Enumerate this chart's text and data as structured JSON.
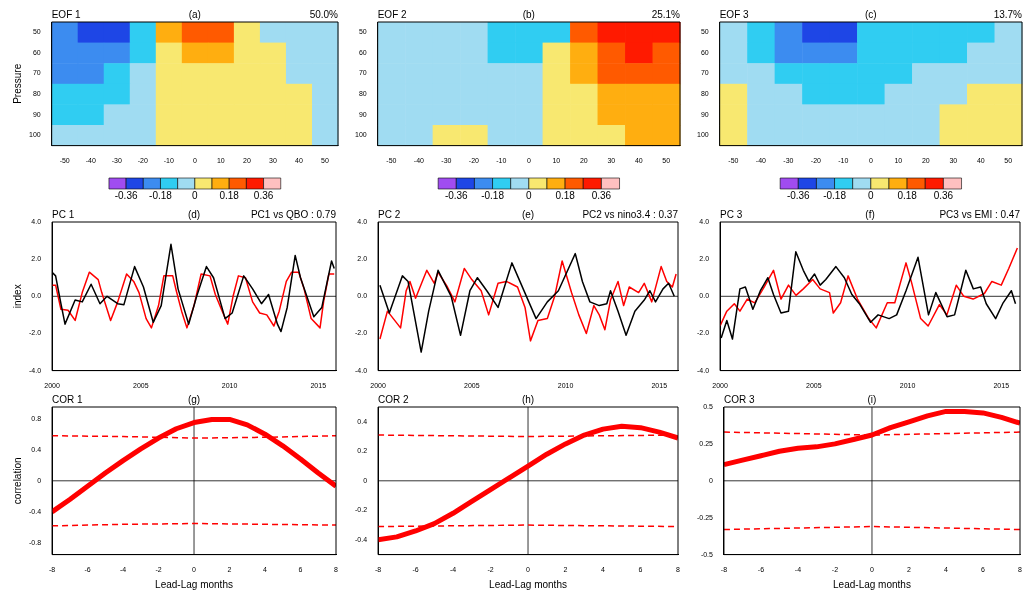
{
  "chart_data": [
    {
      "type": "heatmap",
      "title": "(a)",
      "annotations": [
        "EOF 1",
        "50.0%"
      ],
      "ylabel": "Pressure",
      "categories": [
        "-50",
        "-40",
        "-30",
        "-20",
        "-10",
        "0",
        "10",
        "20",
        "30",
        "40",
        "50"
      ],
      "y_categories": [
        "50",
        "60",
        "70",
        "80",
        "90",
        "100"
      ],
      "cells": [
        [
          -0.23,
          -0.32,
          -0.32,
          -0.14,
          0.14,
          0.23,
          0.23,
          0.05,
          -0.05,
          -0.05,
          -0.05
        ],
        [
          -0.23,
          -0.23,
          -0.23,
          -0.14,
          0.05,
          0.14,
          0.14,
          0.05,
          0.05,
          -0.05,
          -0.05
        ],
        [
          -0.23,
          -0.23,
          -0.14,
          -0.05,
          0.05,
          0.05,
          0.05,
          0.05,
          0.05,
          -0.05,
          -0.05
        ],
        [
          -0.14,
          -0.14,
          -0.14,
          -0.05,
          0.05,
          0.05,
          0.05,
          0.05,
          0.05,
          0.05,
          -0.05
        ],
        [
          -0.14,
          -0.14,
          -0.05,
          -0.05,
          0.05,
          0.05,
          0.05,
          0.05,
          0.05,
          0.05,
          -0.05
        ],
        [
          -0.05,
          -0.05,
          -0.05,
          -0.05,
          0.05,
          0.05,
          0.05,
          0.05,
          0.05,
          0.05,
          -0.05
        ]
      ],
      "clim": [
        -0.45,
        0.45
      ],
      "cticks": [
        -0.36,
        {
          "value": -0.27,
          "label": null
        },
        -0.18,
        {
          "value": -0.09,
          "label": null
        },
        0,
        {
          "value": 0.09,
          "label": null
        },
        0.18,
        {
          "value": 0.27,
          "label": null
        },
        0.36
      ],
      "colors": [
        "#a04cf0",
        "#1e46e6",
        "#3c8cf0",
        "#30cdf2",
        "#a0dcf2",
        "#f8e870",
        "#ffae10",
        "#ff5a00",
        "#ff1a00",
        "#ffc0c0"
      ]
    },
    {
      "type": "heatmap",
      "title": "(b)",
      "annotations": [
        "EOF 2",
        "25.1%"
      ],
      "categories": [
        "-50",
        "-40",
        "-30",
        "-20",
        "-10",
        "0",
        "10",
        "20",
        "30",
        "40",
        "50"
      ],
      "y_categories": [
        "50",
        "60",
        "70",
        "80",
        "90",
        "100"
      ],
      "cells": [
        [
          -0.05,
          -0.05,
          -0.05,
          -0.05,
          -0.14,
          -0.14,
          -0.14,
          0.23,
          0.32,
          0.32,
          0.32
        ],
        [
          -0.05,
          -0.05,
          -0.05,
          -0.05,
          -0.14,
          -0.14,
          0.05,
          0.14,
          0.23,
          0.32,
          0.23
        ],
        [
          -0.05,
          -0.05,
          -0.05,
          -0.05,
          -0.05,
          -0.05,
          0.05,
          0.14,
          0.23,
          0.23,
          0.23
        ],
        [
          -0.05,
          -0.05,
          -0.05,
          -0.05,
          -0.05,
          -0.05,
          0.05,
          0.05,
          0.14,
          0.14,
          0.14
        ],
        [
          -0.05,
          -0.05,
          -0.05,
          -0.05,
          -0.05,
          -0.05,
          0.05,
          0.05,
          0.14,
          0.14,
          0.14
        ],
        [
          -0.05,
          -0.05,
          0.05,
          0.05,
          -0.05,
          -0.05,
          0.05,
          0.05,
          0.05,
          0.14,
          0.14
        ]
      ],
      "clim": [
        -0.45,
        0.45
      ],
      "cticks": [
        -0.36,
        {
          "value": -0.27,
          "label": null
        },
        -0.18,
        {
          "value": -0.09,
          "label": null
        },
        0,
        {
          "value": 0.09,
          "label": null
        },
        0.18,
        {
          "value": 0.27,
          "label": null
        },
        0.36
      ],
      "colors": [
        "#a04cf0",
        "#1e46e6",
        "#3c8cf0",
        "#30cdf2",
        "#a0dcf2",
        "#f8e870",
        "#ffae10",
        "#ff5a00",
        "#ff1a00",
        "#ffc0c0"
      ]
    },
    {
      "type": "heatmap",
      "title": "(c)",
      "annotations": [
        "EOF 3",
        "13.7%"
      ],
      "categories": [
        "-50",
        "-40",
        "-30",
        "-20",
        "-10",
        "0",
        "10",
        "20",
        "30",
        "40",
        "50"
      ],
      "y_categories": [
        "50",
        "60",
        "70",
        "80",
        "90",
        "100"
      ],
      "cells": [
        [
          -0.05,
          -0.14,
          -0.23,
          -0.32,
          -0.32,
          -0.14,
          -0.14,
          -0.14,
          -0.14,
          -0.14,
          -0.05
        ],
        [
          -0.05,
          -0.14,
          -0.23,
          -0.23,
          -0.23,
          -0.14,
          -0.14,
          -0.14,
          -0.14,
          -0.05,
          -0.05
        ],
        [
          -0.05,
          -0.05,
          -0.14,
          -0.14,
          -0.14,
          -0.14,
          -0.14,
          -0.05,
          -0.05,
          -0.05,
          -0.05
        ],
        [
          0.05,
          -0.05,
          -0.05,
          -0.14,
          -0.14,
          -0.14,
          -0.05,
          -0.05,
          -0.05,
          0.05,
          0.05
        ],
        [
          0.05,
          -0.05,
          -0.05,
          -0.05,
          -0.05,
          -0.05,
          -0.05,
          -0.05,
          0.05,
          0.05,
          0.05
        ],
        [
          0.05,
          -0.05,
          -0.05,
          -0.05,
          -0.05,
          -0.05,
          -0.05,
          -0.05,
          0.05,
          0.05,
          0.05
        ]
      ],
      "clim": [
        -0.45,
        0.45
      ],
      "cticks": [
        -0.36,
        {
          "value": -0.27,
          "label": null
        },
        -0.18,
        {
          "value": -0.09,
          "label": null
        },
        0,
        {
          "value": 0.09,
          "label": null
        },
        0.18,
        {
          "value": 0.27,
          "label": null
        },
        0.36
      ],
      "colors": [
        "#a04cf0",
        "#1e46e6",
        "#3c8cf0",
        "#30cdf2",
        "#a0dcf2",
        "#f8e870",
        "#ffae10",
        "#ff5a00",
        "#ff1a00",
        "#ffc0c0"
      ]
    },
    {
      "type": "line",
      "title": "(d)",
      "annotations": [
        "PC 1",
        "PC1 vs QBO : 0.79"
      ],
      "ylabel": "index",
      "xlim": [
        2000,
        2016
      ],
      "xticks": [
        2000,
        2005,
        2010,
        2015
      ],
      "ylim": [
        -4,
        4
      ],
      "yticks": [
        {
          "value": -4,
          "label": "-4.0"
        },
        {
          "value": -2,
          "label": "-2.0"
        },
        {
          "value": 0,
          "label": "0.0"
        },
        {
          "value": 2,
          "label": "2.0"
        },
        {
          "value": 4,
          "label": "4.0"
        }
      ],
      "ref_lines": [
        {
          "axis": "y",
          "value": 0,
          "color": "#000000"
        }
      ],
      "series": [
        {
          "color": "#000000",
          "x": [
            2000,
            2000.2,
            2000.5,
            2000.73,
            2001.3,
            2001.7,
            2002.2,
            2002.7,
            2003.1,
            2003.7,
            2004.05,
            2004.65,
            2005.15,
            2005.7,
            2006.15,
            2006.7,
            2007.1,
            2007.7,
            2008.15,
            2008.7,
            2009.1,
            2009.75,
            2010.15,
            2010.8,
            2011.3,
            2011.8,
            2012.2,
            2012.7,
            2012.9,
            2013.25,
            2013.7,
            2014,
            2014.75,
            2015.2,
            2015.75,
            2015.9
          ],
          "values": [
            1.3,
            1.1,
            -0.4,
            -1.5,
            -0.2,
            -0.3,
            0.65,
            -0.4,
            0,
            -0.4,
            -0.45,
            1.6,
            0.5,
            -1.4,
            -0.5,
            2.8,
            0.4,
            -1.5,
            0,
            1.6,
            1,
            -1.2,
            -0.9,
            1.1,
            0.4,
            -0.4,
            0.1,
            -1.5,
            -1.9,
            -0.6,
            2.2,
            1,
            -1.1,
            -0.6,
            1.9,
            1.5
          ]
        },
        {
          "color": "#ff0000",
          "x": [
            2000,
            2000.2,
            2000.5,
            2000.9,
            2001.3,
            2001.7,
            2002.1,
            2002.6,
            2002.8,
            2003.3,
            2003.7,
            2004.2,
            2004.6,
            2004.9,
            2005.3,
            2005.6,
            2006,
            2006.3,
            2006.8,
            2007,
            2007.3,
            2007.6,
            2008,
            2008.4,
            2008.9,
            2009.2,
            2009.5,
            2009.9,
            2010.2,
            2010.5,
            2010.9,
            2011.3,
            2011.7,
            2012.1,
            2012.5,
            2012.8,
            2013.2,
            2013.5,
            2013.9,
            2014.2,
            2014.6,
            2015.1,
            2015.3,
            2015.6,
            2015.9
          ],
          "values": [
            0.6,
            0.6,
            -0.7,
            -0.75,
            -1.3,
            0.2,
            1.3,
            0.9,
            0.2,
            -1.3,
            -0.3,
            1.2,
            0.8,
            0.2,
            -1.2,
            -1.7,
            -0.5,
            1.1,
            1.1,
            0.3,
            -0.8,
            -1.7,
            -0.5,
            1.2,
            1.1,
            0.1,
            -0.6,
            -1.5,
            0,
            1.1,
            1,
            -0.3,
            -0.9,
            -1,
            -1.6,
            -0.8,
            0.8,
            1.3,
            1.3,
            0.4,
            -1.2,
            -1.7,
            -0.3,
            1.2,
            1.2
          ]
        }
      ]
    },
    {
      "type": "line",
      "title": "(e)",
      "annotations": [
        "PC 2",
        "PC2 vs nino3.4 : 0.37"
      ],
      "xlim": [
        2000,
        2016
      ],
      "xticks": [
        2000,
        2005,
        2010,
        2015
      ],
      "ylim": [
        -4,
        4
      ],
      "yticks": [
        {
          "value": -4,
          "label": "-4.0"
        },
        {
          "value": -2,
          "label": "-2.0"
        },
        {
          "value": 0,
          "label": "0.0"
        },
        {
          "value": 2,
          "label": "2.0"
        },
        {
          "value": 4,
          "label": "4.0"
        }
      ],
      "ref_lines": [
        {
          "axis": "y",
          "value": 0,
          "color": "#000000"
        }
      ],
      "series": [
        {
          "color": "#000000",
          "x": [
            2000.1,
            2000.6,
            2001.3,
            2001.6,
            2002.3,
            2002.7,
            2003.2,
            2003.9,
            2004.4,
            2004.9,
            2005.3,
            2005.8,
            2006.4,
            2007.14,
            2008.43,
            2009.03,
            2009.62,
            2010.52,
            2010.9,
            2011.3,
            2011.8,
            2012.2,
            2012.4,
            2012.8,
            2013.23,
            2013.7,
            2014.2,
            2014.5,
            2014.8,
            2015.2,
            2015.5,
            2015.8
          ],
          "values": [
            0.6,
            -0.9,
            1.1,
            0.8,
            -3,
            -0.8,
            1.4,
            0,
            -2.1,
            0.3,
            1,
            0.3,
            -0.6,
            1.8,
            -1.2,
            -0.3,
            0.3,
            2.3,
            0.8,
            -0.3,
            -0.5,
            -0.4,
            0.3,
            -0.8,
            -2.1,
            -0.8,
            -0.2,
            0.3,
            -0.3,
            0.4,
            0.7,
            0
          ]
        },
        {
          "color": "#ff0000",
          "x": [
            2000.1,
            2000.5,
            2001.2,
            2001.5,
            2001.7,
            2002,
            2002.6,
            2003,
            2003.2,
            2003.7,
            2004.1,
            2004.6,
            2005,
            2005.5,
            2005.9,
            2006.4,
            2006.85,
            2007.44,
            2007.84,
            2008.13,
            2008.53,
            2009.03,
            2009.42,
            2009.82,
            2010.32,
            2010.71,
            2011.11,
            2011.51,
            2011.8,
            2012.1,
            2012.4,
            2012.8,
            2013.1,
            2013.4,
            2013.9,
            2014.2,
            2014.6,
            2015.1,
            2015.4,
            2015.7,
            2015.9
          ],
          "values": [
            -2.3,
            -0.8,
            -1.7,
            0.3,
            0.8,
            -0.1,
            1.4,
            0.7,
            1.3,
            0.5,
            -0.3,
            1.5,
            0.9,
            0.3,
            -1,
            0.7,
            0.8,
            0.5,
            -0.6,
            -2.4,
            -1.3,
            -1.2,
            0,
            1.9,
            0.2,
            -1,
            -2,
            -0.5,
            -1,
            -1.8,
            -0.2,
            0.8,
            -0.5,
            0.5,
            0.2,
            0.7,
            -0.3,
            1.6,
            0.8,
            0.5,
            1.2
          ]
        }
      ]
    },
    {
      "type": "line",
      "title": "(f)",
      "annotations": [
        "PC 3",
        "PC3 vs EMI : 0.47"
      ],
      "xlim": [
        2000,
        2016
      ],
      "xticks": [
        2000,
        2005,
        2010,
        2015
      ],
      "ylim": [
        -4,
        4
      ],
      "yticks": [
        {
          "value": -4,
          "label": "-4.0"
        },
        {
          "value": -2,
          "label": "-2.0"
        },
        {
          "value": 0,
          "label": "0.0"
        },
        {
          "value": 2,
          "label": "2.0"
        },
        {
          "value": 4,
          "label": "4.0"
        }
      ],
      "ref_lines": [
        {
          "axis": "y",
          "value": 0,
          "color": "#000000"
        }
      ],
      "series": [
        {
          "color": "#000000",
          "x": [
            2000.06,
            2000.36,
            2000.66,
            2001.06,
            2001.35,
            2001.75,
            2002.15,
            2002.55,
            2002.85,
            2003.25,
            2003.65,
            2004.04,
            2004.44,
            2004.74,
            2005.04,
            2005.34,
            2005.64,
            2006.18,
            2006.63,
            2007.03,
            2007.43,
            2008.03,
            2008.43,
            2009.02,
            2009.42,
            2009.92,
            2010.56,
            2011.12,
            2011.51,
            2012.11,
            2012.51,
            2013.11,
            2013.51,
            2013.9,
            2014.2,
            2014.7,
            2015.1,
            2015.54,
            2015.76
          ],
          "values": [
            -2.25,
            -1.3,
            -2.3,
            0.4,
            0.5,
            -0.7,
            0.3,
            1,
            0.1,
            -0.9,
            -0.8,
            2.4,
            1.4,
            0.8,
            1.2,
            0.6,
            0.9,
            1.6,
            1,
            0.1,
            -0.4,
            -1.4,
            -1,
            -1.2,
            -1,
            0.3,
            2.1,
            -1,
            0.2,
            -1.1,
            -1,
            1.4,
            0.4,
            0.5,
            -0.4,
            -1.2,
            -0.35,
            0.3,
            -0.4
          ]
        },
        {
          "color": "#ff0000",
          "x": [
            2000,
            2000.36,
            2000.76,
            2001.06,
            2001.45,
            2001.85,
            2002.35,
            2002.85,
            2003.25,
            2003.65,
            2004.05,
            2004.44,
            2004.94,
            2005.34,
            2005.84,
            2006.04,
            2006.43,
            2006.83,
            2007.33,
            2007.93,
            2008.33,
            2008.92,
            2009.32,
            2009.92,
            2010.2,
            2010.7,
            2011.1,
            2011.7,
            2012.1,
            2012.6,
            2013,
            2013.5,
            2014.1,
            2014.5,
            2015,
            2015.4,
            2015.86
          ],
          "values": [
            -1.6,
            -0.8,
            -0.4,
            -0.8,
            -0.15,
            -0.35,
            0.5,
            1.4,
            -0.15,
            0.6,
            0.05,
            0.4,
            0.9,
            0.4,
            0.2,
            -0.9,
            -0.35,
            1.1,
            -0.15,
            -1.2,
            -1.7,
            -0.35,
            -0.35,
            1.8,
            0.8,
            -1.2,
            -1.6,
            -0.45,
            -1,
            0.6,
            0,
            -0.15,
            0.15,
            0.8,
            0.6,
            1.5,
            2.6
          ]
        }
      ]
    },
    {
      "type": "line",
      "title": "(g)",
      "annotations": [
        "COR 1"
      ],
      "xlabel": "Lead-Lag months",
      "ylabel": "correlation",
      "xlim": [
        -8,
        8
      ],
      "xticks": [
        -8,
        -6,
        -4,
        -2,
        0,
        2,
        4,
        6,
        8
      ],
      "ylim": [
        -0.95,
        0.95
      ],
      "yticks": [
        -0.8,
        -0.4,
        0,
        0.4,
        0.8
      ],
      "ref_lines": [
        {
          "axis": "y",
          "value": 0,
          "color": "#000000"
        },
        {
          "axis": "x",
          "value": 0,
          "color": "#000000"
        }
      ],
      "series": [
        {
          "color": "#ff0000",
          "x": [
            -8,
            -7,
            -6,
            -5,
            -4,
            -3,
            -2,
            -1,
            0,
            1,
            2,
            3,
            4,
            5,
            6,
            7,
            8
          ],
          "values": [
            -0.4,
            -0.24,
            -0.07,
            0.1,
            0.26,
            0.41,
            0.55,
            0.67,
            0.75,
            0.79,
            0.79,
            0.72,
            0.6,
            0.45,
            0.28,
            0.1,
            -0.07
          ]
        },
        {
          "color": "#ff0000",
          "line_style": "dashed",
          "x": [
            -8,
            -4,
            0,
            4,
            8
          ],
          "values": [
            0.58,
            0.57,
            0.55,
            0.56,
            0.58
          ]
        },
        {
          "color": "#ff0000",
          "line_style": "dashed",
          "x": [
            -8,
            -4,
            0,
            4,
            8
          ],
          "values": [
            -0.58,
            -0.56,
            -0.55,
            -0.56,
            -0.57
          ]
        }
      ]
    },
    {
      "type": "line",
      "title": "(h)",
      "annotations": [
        "COR 2"
      ],
      "xlabel": "Lead-Lag months",
      "xlim": [
        -8,
        8
      ],
      "xticks": [
        -8,
        -6,
        -4,
        -2,
        0,
        2,
        4,
        6,
        8
      ],
      "ylim": [
        -0.5,
        0.5
      ],
      "yticks": [
        -0.4,
        -0.2,
        0,
        0.2,
        0.4
      ],
      "ref_lines": [
        {
          "axis": "y",
          "value": 0,
          "color": "#000000"
        },
        {
          "axis": "x",
          "value": 0,
          "color": "#000000"
        }
      ],
      "series": [
        {
          "color": "#ff0000",
          "x": [
            -8,
            -7,
            -6,
            -5,
            -4,
            -3,
            -2,
            -1,
            0,
            1,
            2,
            3,
            4,
            5,
            6,
            7,
            8
          ],
          "values": [
            -0.4,
            -0.38,
            -0.34,
            -0.29,
            -0.22,
            -0.14,
            -0.06,
            0.02,
            0.1,
            0.18,
            0.25,
            0.31,
            0.35,
            0.37,
            0.36,
            0.33,
            0.29
          ]
        },
        {
          "color": "#ff0000",
          "line_style": "dashed",
          "x": [
            -8,
            0,
            8
          ],
          "values": [
            0.31,
            0.3,
            0.31
          ]
        },
        {
          "color": "#ff0000",
          "line_style": "dashed",
          "x": [
            -8,
            0,
            8
          ],
          "values": [
            -0.31,
            -0.3,
            -0.31
          ]
        }
      ]
    },
    {
      "type": "line",
      "title": "(i)",
      "annotations": [
        "COR 3"
      ],
      "xlabel": "Lead-Lag months",
      "xlim": [
        -8,
        8
      ],
      "xticks": [
        -8,
        -6,
        -4,
        -2,
        0,
        2,
        4,
        6,
        8
      ],
      "ylim": [
        -0.5,
        0.5
      ],
      "yticks": [
        -0.5,
        -0.25,
        0,
        0.25,
        0.5
      ],
      "ref_lines": [
        {
          "axis": "y",
          "value": 0,
          "color": "#000000"
        },
        {
          "axis": "x",
          "value": 0,
          "color": "#000000"
        }
      ],
      "series": [
        {
          "color": "#ff0000",
          "x": [
            -8,
            -7,
            -6,
            -5,
            -4,
            -3,
            -2,
            -1,
            0,
            1,
            2,
            3,
            4,
            5,
            6,
            7,
            8
          ],
          "values": [
            0.11,
            0.14,
            0.17,
            0.2,
            0.22,
            0.23,
            0.25,
            0.28,
            0.31,
            0.36,
            0.4,
            0.44,
            0.47,
            0.47,
            0.46,
            0.43,
            0.39
          ]
        },
        {
          "color": "#ff0000",
          "line_style": "dashed",
          "x": [
            -8,
            0,
            8
          ],
          "values": [
            0.33,
            0.31,
            0.33
          ]
        },
        {
          "color": "#ff0000",
          "line_style": "dashed",
          "x": [
            -8,
            0,
            8
          ],
          "values": [
            -0.33,
            -0.31,
            -0.33
          ]
        }
      ]
    }
  ]
}
